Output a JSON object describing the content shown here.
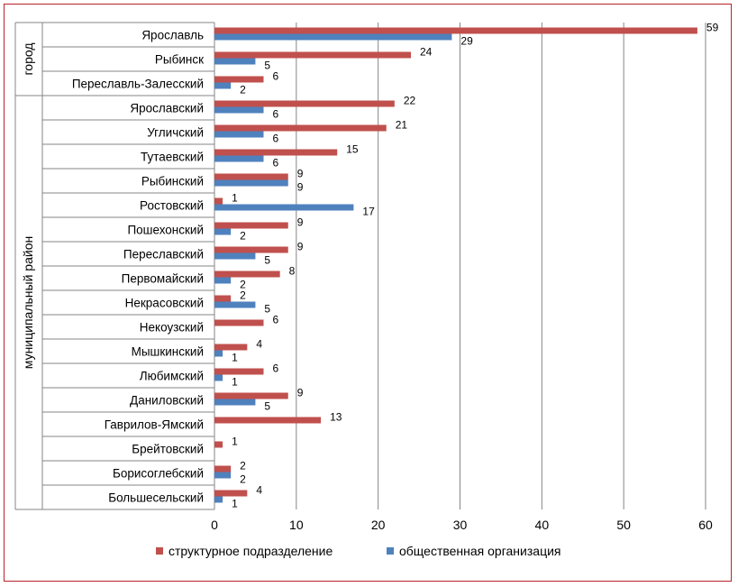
{
  "chart_data": {
    "type": "bar",
    "orientation": "horizontal",
    "categories": [
      "Ярославль",
      "Рыбинск",
      "Переславль-Залесский",
      "Ярославский",
      "Угличский",
      "Тутаевский",
      "Рыбинский",
      "Ростовский",
      "Пошехонский",
      "Переславский",
      "Первомайский",
      "Некрасовский",
      "Некоузский",
      "Мышкинский",
      "Любимский",
      "Даниловский",
      "Гаврилов-Ямский",
      "Брейтовский",
      "Борисоглебский",
      "Большесельский"
    ],
    "groups": [
      {
        "label": "город",
        "count": 3
      },
      {
        "label": "муниципальный район",
        "count": 17
      }
    ],
    "series": [
      {
        "name": "структурное подразделение",
        "color": "#c0504d",
        "values": [
          59,
          24,
          6,
          22,
          21,
          15,
          9,
          1,
          9,
          9,
          8,
          2,
          6,
          4,
          6,
          9,
          13,
          1,
          2,
          4
        ]
      },
      {
        "name": "общественная организация",
        "color": "#4f81bd",
        "values": [
          29,
          5,
          2,
          6,
          6,
          6,
          9,
          17,
          2,
          5,
          2,
          5,
          null,
          1,
          1,
          5,
          null,
          null,
          2,
          1
        ]
      }
    ],
    "xlim": [
      0,
      60
    ],
    "xticks": [
      0,
      10,
      20,
      30,
      40,
      50,
      60
    ],
    "grid": true,
    "legend_position": "bottom"
  }
}
